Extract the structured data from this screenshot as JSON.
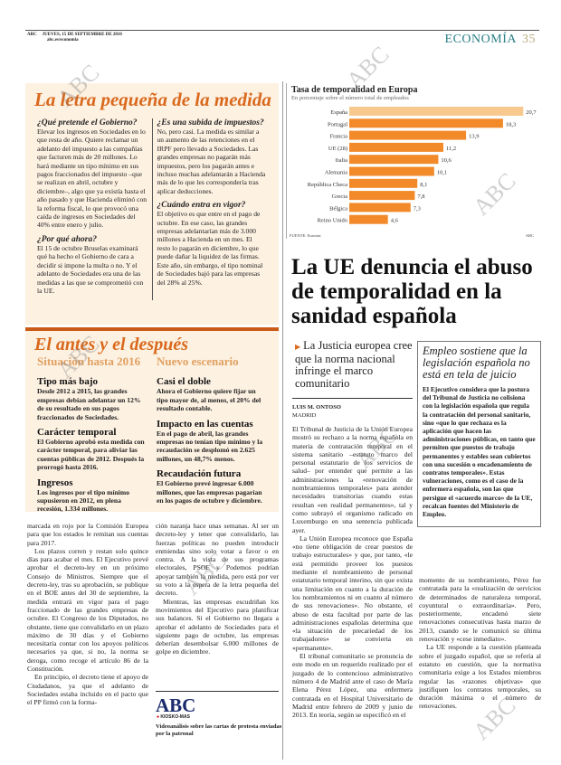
{
  "header": {
    "brand": "ABC",
    "date": "JUEVES, 15 DE SEPTIEMBRE DE 2016",
    "url": "abc.es/economia",
    "section": "ECONOMÍA",
    "page": "35"
  },
  "box1": {
    "title": "La letra pequeña de la medida",
    "left": [
      {
        "q": "¿Qué pretende el Gobierno?",
        "a": "Elevar los ingresos en Sociedades en lo que resta de año. Quiere reclamar un adelanto del impuesto a las compañías que facturen más de 20 millones. Lo hará mediante un tipo mínimo en sus pagos fraccionados del impuesto –que se realizan en abril, octubre y diciembre–, algo que ya existía hasta el año pasado y que Hacienda eliminó con la reforma fiscal, lo que provocó una caída de ingresos en Sociedades del 40% entre enero y julio."
      },
      {
        "q": "¿Por qué ahora?",
        "a": "El 15 de octubre Bruselas examinará qué ha hecho el Gobierno de cara a decidir si impone la multa o no. Y el adelanto de Sociedades era una de las medidas a las que se comprometió con la UE."
      }
    ],
    "right": [
      {
        "q": "¿Es una subida de impuestos?",
        "a": "No, pero casi. La medida es similar a un aumento de las retenciones en el IRPF pero llevado a Sociedades. Las grandes empresas no pagarán más impuestos, pero los pagarán antes e incluso muchas adelantarán a Hacienda más de lo que les correspondería tras aplicar deducciones."
      },
      {
        "q": "¿Cuándo entra en vigor?",
        "a": "El objetivo es que entre en el pago de octubre. En ese caso, las grandes empresas adelantarían más de 3.000 millones a Hacienda en un mes. El resto lo pagarán en diciembre, lo que puede dañar la liquidez de las firmas. Este año, sin embargo, el tipo nominal de Sociedades bajó para las empresas del 28% al 25%."
      }
    ]
  },
  "box2": {
    "title": "El antes y el después",
    "left_sub": "Situación hasta 2016",
    "right_sub": "Nuevo escenario",
    "left": [
      {
        "h": "Tipo más bajo",
        "t": "Desde 2012 a 2015, las grandes empresas debían adelantar un 12% de su resultado en sus pagos fraccionados de Sociedades."
      },
      {
        "h": "Carácter temporal",
        "t": "El Gobierno aprobó esta medida con carácter temporal, para aliviar las cuentas públicas de 2012. Después la prorrogó hasta 2016."
      },
      {
        "h": "Ingresos",
        "t": "Los ingresos por el tipo mínimo supusieron en 2012, en plena recesión, 1.334 millones."
      }
    ],
    "right": [
      {
        "h": "Casi el doble",
        "t": "Ahora el Gobierno quiere fijar un tipo mayor de, al menos, el 20% del resultado contable."
      },
      {
        "h": "Impacto en las cuentas",
        "t": "En el pago de abril, las grandes empresas no tenían tipo mínimo y la recaudación se desplomó en 2.625 millones, un 48,7% menos."
      },
      {
        "h": "Recaudación futura",
        "t": "El Gobierno prevé ingresar 6.000 millones, que las empresas pagarían en los pagos de octubre y diciembre."
      }
    ]
  },
  "left_body": {
    "col1": [
      "marcada en rojo por la Comisión Europea para que los estados le remitan sus cuentas para 2017.",
      "Los plazos corren y restan solo quince días para acabar el mes. El Ejecutivo prevé aprobar el decreto-ley en un próximo Consejo de Ministros. Siempre que el decreto-ley, tras su aprobación, se publique en el BOE antes del 30 de septiembre, la medida entrará en vigor para el pago fraccionado de las grandes empresas de octubre. El Congreso de los Diputados, no obstante, tiene que convalidarlo en un plazo máximo de 30 días y el Gobierno necesitaría contar con los apoyos políticos necesarios ya que, si no, la norma se deroga, como recoge el artículo 86 de la Constitución.",
      "En principio, el decreto tiene el apoyo de Ciudadanos, ya que el adelanto de Sociedades estaba incluido en el pacto que el PP firmó con la forma-"
    ],
    "col2": [
      "ción naranja hace unas semanas. Al ser un decreto-ley y tener que convalidarlo, las fuerzas políticas no pueden introducir enmiendas sino solo votar a favor o en contra. A la vista de sus programas electorales, PSOE y Podemos podrían apoyar también la medida, pero está por ver su voto a la espera de la letra pequeña del decreto.",
      "Mientras, las empresas escudriñan los movimientos del Ejecutivo para planificar sus balances. Si el Gobierno no llegara a aprobar el adelanto de Sociedades para el siguiente pago de octubre, las empresas deberían desembolsar 6.000 millones de golpe en diciembre."
    ],
    "promo_logo": "ABC",
    "promo_tag": "KIOSKO-MAS",
    "promo_text": "Videoanálisis sobre las cartas de protesta enviadas por la patronal"
  },
  "chart_data": {
    "type": "bar",
    "title": "Tasa de temporalidad en Europa",
    "subtitle": "En porcentaje sobre el número total de empleados",
    "categories": [
      "España",
      "Portugal",
      "Francia",
      "UE (28)",
      "Italia",
      "Alemania",
      "República Checa",
      "Grecia",
      "Bélgica",
      "Reino Unido"
    ],
    "values": [
      20.7,
      18.3,
      13.9,
      11.2,
      10.6,
      10.1,
      8.1,
      7.8,
      7.3,
      4.6
    ],
    "labels": [
      "20,7",
      "18,3",
      "13,9",
      "11,2",
      "10,6",
      "10,1",
      "8,1",
      "7,8",
      "7,3",
      "4,6"
    ],
    "source": "FUENTE: Eurostat",
    "credit": "ABC",
    "colors": {
      "highlight": "#f8c98e",
      "bar": "#f28a2a"
    },
    "xlim": [
      0,
      21
    ]
  },
  "article": {
    "headline": "La UE denuncia el abuso de temporalidad en la sanidad española",
    "kicker": "La Justicia europea cree que la norma nacional infringe el marco comunitario",
    "author": "LUIS M. ONTOSO",
    "place": "MADRID",
    "col1": [
      "El Tribunal de Justicia de la Unión Europea mostró su rechazo a la norma española en materia de contratación temporal en el sistema sanitario –estatuto marco del personal estatutario de los servicios de salud– por entender que permite a las administraciones la «renovación de nombramientos temporales» para atender necesidades transitorias cuando estas resultan «en realidad permanentes», tal y como subrayó el organismo radicado en Luxemburgo en una sentencia publicada ayer.",
      "La Unión Europea reconoce que España «no tiene obligación de crear puestos de trabajo estructurales» y que, por tanto, «le está permitido proveer los puestos mediante el nombramiento de personal estatutario temporal interino, sin que exista una limitación en cuanto a la duración de los nombramientos ni en cuanto al número de sus renovaciones». No obstante, el abuso de esta facultad por parte de las administraciones españolas determina que «la situación de precariedad de los trabajadores» se convierta en «permanente».",
      "El tribunal comunitario se pronuncia de este modo en un requerido realizado por el juzgado de lo contencioso administrativo número 4 de Madrid ante el caso de María Elena Pérez López, una enfermera contratada en el Hospital Universitario de Madrid entre febrero de 2009 y junio de 2013. En teoría, según se especificó en el"
    ],
    "col2": [
      "momento de su nombramiento, Pérez fue contratada para la «realización de servicios de determinados de naturaleza temporal, coyuntural o extraordinaria». Pero, posteriormente, encadenó siete renovaciones consecutivas hasta marzo de 2013, cuando se le comunicó su última renovación y «cese inmediato».",
      "La UE responde a la cuestión planteada sobre el juzgado español, que se refería al estatuto en cuestión, que la normativa comunitaria exige a los Estados miembros regular las «razones objetivas» que justifiquen los contratos temporales, su duración máxima o el número de renovaciones."
    ]
  },
  "sidebar": {
    "title": "Empleo sostiene que la legislación española no está en tela de juicio",
    "text": "El Ejecutivo considera que la postura del Tribunal de Justicia no colisiona con la legislación española que regula la contratación del personal sanitario, sino «que lo que rechaza es la aplicación que hacen las administraciones públicas, en tanto que permiten que puestos de trabajo permanentes y estables sean cubiertos con una sucesión o encadenamiento de contratos temporales». Estas vulneraciones, como es el caso de la enfermera española, son las que persigue el «acuerdo marco» de la UE, recalcan fuentes del Ministerio de Empleo."
  },
  "watermark": "ABC"
}
